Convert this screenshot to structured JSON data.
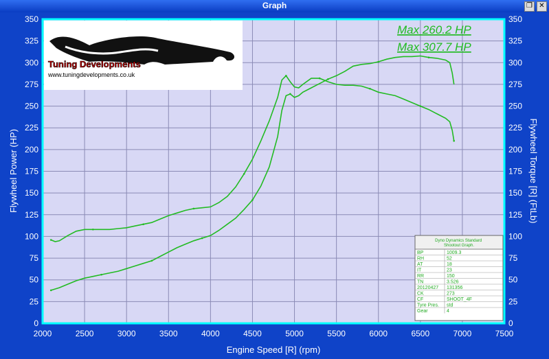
{
  "window": {
    "title": "Graph",
    "restore_icon": "restore-icon",
    "close_icon": "close-icon"
  },
  "logo": {
    "brand": "Tuning Developments",
    "url": "www.tuningdevelopments.co.uk"
  },
  "max_labels": [
    "Max 260.2 HP",
    "Max 307.7 HP"
  ],
  "info_table": {
    "title": "Dyno Dynamics Standard Shootout Graph.",
    "rows": [
      [
        "BP",
        "1009.3"
      ],
      [
        "RH",
        "52"
      ],
      [
        "AT",
        "18"
      ],
      [
        "IT",
        "23"
      ],
      [
        "RR",
        "150"
      ],
      [
        "TN",
        "3.526"
      ],
      [
        "20120427",
        "131356"
      ],
      [
        "CK",
        "273"
      ],
      [
        "CF",
        "SHOOT_4F"
      ],
      [
        "Tyre Pres.",
        "std"
      ],
      [
        "Gear",
        "4"
      ]
    ]
  },
  "colors": {
    "background": "#0f43c8",
    "plot_bg": "#d8d8f5",
    "frame": "#00ffff",
    "curve": "#22bb22",
    "label": "#ffffff"
  },
  "chart_data": {
    "type": "line",
    "xlabel": "Engine Speed [R] (rpm)",
    "ylabel": "Flywheel Power (HP)",
    "y2label": "Flywheel Torque [R] (FtLb)",
    "xlim": [
      2000,
      7500
    ],
    "ylim": [
      0,
      350
    ],
    "y2lim": [
      0,
      350
    ],
    "x_ticks": [
      "2000",
      "2500",
      "3000",
      "3500",
      "4000",
      "4500",
      "5000",
      "5500",
      "6000",
      "6500",
      "7000",
      "7500"
    ],
    "y_ticks": [
      "0",
      "25",
      "50",
      "75",
      "100",
      "125",
      "150",
      "175",
      "200",
      "225",
      "250",
      "275",
      "300",
      "325",
      "350"
    ],
    "grid": true,
    "series": [
      {
        "axis": "left",
        "x": [
          2100,
          2200,
          2300,
          2400,
          2500,
          2600,
          2700,
          2800,
          2900,
          3000,
          3100,
          3200,
          3300,
          3400,
          3500,
          3600,
          3700,
          3800,
          3900,
          4000,
          4100,
          4200,
          4300,
          4400,
          4500,
          4600,
          4700,
          4800,
          4850,
          4900,
          4950,
          5000,
          5050,
          5100,
          5200,
          5300,
          5400,
          5500,
          5600,
          5700,
          5800,
          5900,
          6000,
          6100,
          6200,
          6300,
          6400,
          6500,
          6600,
          6700,
          6800,
          6850,
          6880,
          6900
        ],
        "y": [
          38,
          41,
          45,
          49,
          52,
          54,
          56,
          58,
          60,
          63,
          66,
          69,
          72,
          77,
          82,
          87,
          91,
          95,
          98,
          101,
          107,
          114,
          121,
          131,
          142,
          158,
          180,
          215,
          245,
          262,
          264,
          260,
          262,
          266,
          271,
          276,
          281,
          285,
          290,
          296,
          298,
          299,
          301,
          304,
          306,
          307,
          307,
          307.7,
          306,
          305,
          303,
          300,
          288,
          275
        ]
      },
      {
        "axis": "right",
        "x": [
          2100,
          2150,
          2200,
          2300,
          2400,
          2500,
          2600,
          2700,
          2800,
          2900,
          3000,
          3100,
          3200,
          3300,
          3400,
          3500,
          3600,
          3700,
          3800,
          3900,
          4000,
          4100,
          4200,
          4300,
          4400,
          4500,
          4600,
          4700,
          4800,
          4850,
          4900,
          4950,
          5000,
          5050,
          5100,
          5200,
          5300,
          5400,
          5500,
          5600,
          5700,
          5800,
          5900,
          6000,
          6100,
          6200,
          6300,
          6400,
          6500,
          6600,
          6700,
          6800,
          6850,
          6880,
          6900
        ],
        "y": [
          96,
          94,
          95,
          101,
          106,
          108,
          108,
          108,
          108,
          109,
          110,
          112,
          114,
          116,
          120,
          124,
          127,
          130,
          132,
          133,
          134,
          139,
          146,
          157,
          172,
          189,
          210,
          233,
          260,
          280,
          285,
          278,
          272,
          271,
          275,
          282,
          282,
          278,
          275,
          274,
          274,
          273,
          270,
          266,
          264,
          262,
          258,
          254,
          250,
          246,
          241,
          236,
          232,
          222,
          210
        ]
      }
    ]
  }
}
